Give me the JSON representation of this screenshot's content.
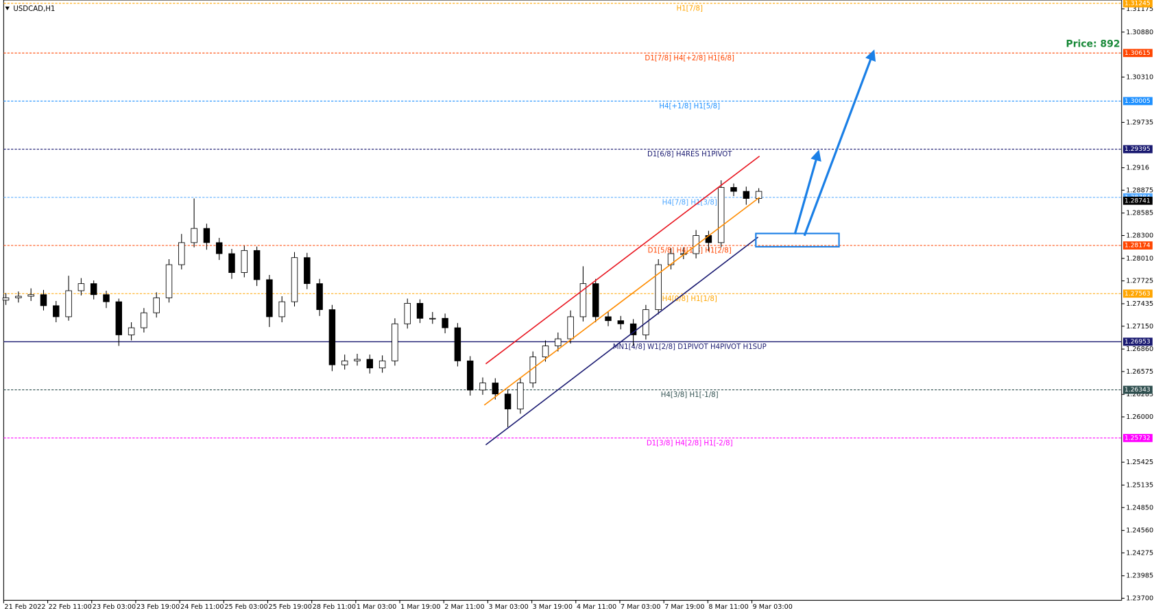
{
  "chart_data": {
    "type": "candlestick",
    "title": "USDCAD,H1",
    "annotation": "Price: 892",
    "x_labels": [
      "21 Feb 2022",
      "22 Feb 11:00",
      "23 Feb 03:00",
      "23 Feb 19:00",
      "24 Feb 11:00",
      "25 Feb 03:00",
      "25 Feb 19:00",
      "28 Feb 11:00",
      "1 Mar 03:00",
      "1 Mar 19:00",
      "2 Mar 11:00",
      "3 Mar 03:00",
      "3 Mar 19:00",
      "4 Mar 11:00",
      "7 Mar 03:00",
      "7 Mar 19:00",
      "8 Mar 11:00",
      "9 Mar 03:00"
    ],
    "ohlc": [
      [
        1.2748,
        1.2757,
        1.2742,
        1.2751
      ],
      [
        1.2751,
        1.2759,
        1.2745,
        1.2753
      ],
      [
        1.2753,
        1.2763,
        1.2747,
        1.2755
      ],
      [
        1.2755,
        1.2761,
        1.2735,
        1.2741
      ],
      [
        1.2741,
        1.2747,
        1.272,
        1.2727
      ],
      [
        1.2727,
        1.2779,
        1.2722,
        1.276
      ],
      [
        1.276,
        1.2776,
        1.2754,
        1.2769
      ],
      [
        1.2769,
        1.2773,
        1.2749,
        1.2755
      ],
      [
        1.2755,
        1.276,
        1.2738,
        1.2746
      ],
      [
        1.2746,
        1.275,
        1.269,
        1.2704
      ],
      [
        1.2704,
        1.272,
        1.2697,
        1.2713
      ],
      [
        1.2713,
        1.2738,
        1.2707,
        1.2732
      ],
      [
        1.2732,
        1.2758,
        1.2726,
        1.2751
      ],
      [
        1.2751,
        1.28,
        1.2745,
        1.2793
      ],
      [
        1.2793,
        1.2832,
        1.2787,
        1.2821
      ],
      [
        1.2821,
        1.2877,
        1.2815,
        1.2839
      ],
      [
        1.2839,
        1.2845,
        1.2812,
        1.2821
      ],
      [
        1.2821,
        1.2827,
        1.2799,
        1.2807
      ],
      [
        1.2807,
        1.2813,
        1.2775,
        1.2783
      ],
      [
        1.2783,
        1.2817,
        1.2777,
        1.2811
      ],
      [
        1.2811,
        1.2816,
        1.2766,
        1.2774
      ],
      [
        1.2774,
        1.278,
        1.2714,
        1.2727
      ],
      [
        1.2727,
        1.2753,
        1.272,
        1.2746
      ],
      [
        1.2746,
        1.2809,
        1.274,
        1.2802
      ],
      [
        1.2802,
        1.2808,
        1.2762,
        1.2769
      ],
      [
        1.2769,
        1.2775,
        1.2728,
        1.2736
      ],
      [
        1.2736,
        1.2742,
        1.2658,
        1.2666
      ],
      [
        1.2666,
        1.2679,
        1.266,
        1.2671
      ],
      [
        1.2671,
        1.268,
        1.2665,
        1.2673
      ],
      [
        1.2673,
        1.2679,
        1.2655,
        1.2662
      ],
      [
        1.2662,
        1.2678,
        1.2656,
        1.2671
      ],
      [
        1.2671,
        1.2725,
        1.2665,
        1.2718
      ],
      [
        1.2718,
        1.275,
        1.2712,
        1.2744
      ],
      [
        1.2744,
        1.2749,
        1.2719,
        1.2725
      ],
      [
        1.2725,
        1.2733,
        1.2718,
        1.2725
      ],
      [
        1.2725,
        1.2731,
        1.2706,
        1.2713
      ],
      [
        1.2713,
        1.2719,
        1.2664,
        1.2671
      ],
      [
        1.2671,
        1.2677,
        1.2627,
        1.2634
      ],
      [
        1.2634,
        1.265,
        1.2628,
        1.2643
      ],
      [
        1.2643,
        1.2649,
        1.2622,
        1.2629
      ],
      [
        1.2629,
        1.2635,
        1.2587,
        1.261
      ],
      [
        1.261,
        1.265,
        1.2604,
        1.2643
      ],
      [
        1.2643,
        1.2683,
        1.2637,
        1.2676
      ],
      [
        1.2676,
        1.2697,
        1.267,
        1.269
      ],
      [
        1.269,
        1.2707,
        1.2683,
        1.2699
      ],
      [
        1.2699,
        1.2735,
        1.2693,
        1.2727
      ],
      [
        1.2727,
        1.2791,
        1.2721,
        1.2769
      ],
      [
        1.2769,
        1.2775,
        1.272,
        1.2727
      ],
      [
        1.2727,
        1.2733,
        1.2715,
        1.2722
      ],
      [
        1.2722,
        1.2728,
        1.2711,
        1.2718
      ],
      [
        1.2718,
        1.2724,
        1.269,
        1.2704
      ],
      [
        1.2704,
        1.2742,
        1.2698,
        1.2736
      ],
      [
        1.2736,
        1.28,
        1.273,
        1.2793
      ],
      [
        1.2793,
        1.2814,
        1.2787,
        1.2807
      ],
      [
        1.2807,
        1.2815,
        1.28,
        1.2807
      ],
      [
        1.2807,
        1.2837,
        1.2801,
        1.283
      ],
      [
        1.283,
        1.2836,
        1.281,
        1.2821
      ],
      [
        1.2821,
        1.29,
        1.2815,
        1.2891
      ],
      [
        1.2891,
        1.2896,
        1.288,
        1.2886
      ],
      [
        1.2886,
        1.2892,
        1.2869,
        1.2877
      ],
      [
        1.2877,
        1.289,
        1.2871,
        1.2886
      ]
    ],
    "bull_color": "#ffffff",
    "bear_color": "#000000",
    "ylim": [
      1.23674,
      1.31287
    ],
    "yticks": [
      1.31175,
      {
        "value": 1.3088,
        "label": "1.30880"
      },
      {
        "value": 1.3031,
        "label": "1.30310"
      },
      1.29735,
      1.2916,
      1.28875,
      1.28585,
      {
        "value": 1.283,
        "label": "1.28300"
      },
      {
        "value": 1.2801,
        "label": "1.28010"
      },
      1.27725,
      1.27435,
      {
        "value": 1.2715,
        "label": "1.27150"
      },
      {
        "value": 1.2686,
        "label": "1.26860"
      },
      1.26575,
      1.26285,
      {
        "value": 1.26,
        "label": "1.26000"
      },
      1.25425,
      1.25135,
      {
        "value": 1.2485,
        "label": "1.24850"
      },
      {
        "value": 1.2456,
        "label": "1.24560"
      },
      1.24275,
      1.23985,
      {
        "value": 1.237,
        "label": "1.23700"
      }
    ],
    "levels": [
      {
        "value": 1.31245,
        "text": "H1[7/8]",
        "color": "#ffa500",
        "dashed": true
      },
      {
        "value": 1.30615,
        "text": "D1[7/8] H4[+2/8] H1[6/8]",
        "color": "#ff4500",
        "dashed": true
      },
      {
        "value": 1.30005,
        "text": "H4[+1/8] H1[5/8]",
        "color": "#1e90ff",
        "dashed": true
      },
      {
        "value": 1.29395,
        "text": "D1[6/8] H4RES H1PIVOT",
        "color": "#191970",
        "dashed": true
      },
      {
        "value": 1.28784,
        "text": "H4[7/8] H1[3/8]",
        "color": "#4da6ff",
        "dashed": true
      },
      {
        "value": 1.28174,
        "text": "D1[5/8] H4[1/8] H1[2/8]",
        "color": "#ff4500",
        "dashed": true
      },
      {
        "value": 1.27563,
        "text": "H4[0/8] H1[1/8]",
        "color": "#ffa500",
        "dashed": true
      },
      {
        "value": 1.26953,
        "text": "MN1[4/8] W1[2/8] D1PIVOT H4PIVOT H1SUP",
        "color": "#191970",
        "dashed": false
      },
      {
        "value": 1.26343,
        "text": "H4[3/8] H1[-1/8]",
        "color": "#2f4f4f",
        "dashed": true
      },
      {
        "value": 1.25732,
        "text": "D1[3/8] H4[2/8] H1[-2/8]",
        "color": "#ff00ff",
        "dashed": true
      }
    ],
    "current_price": 1.28741
  }
}
